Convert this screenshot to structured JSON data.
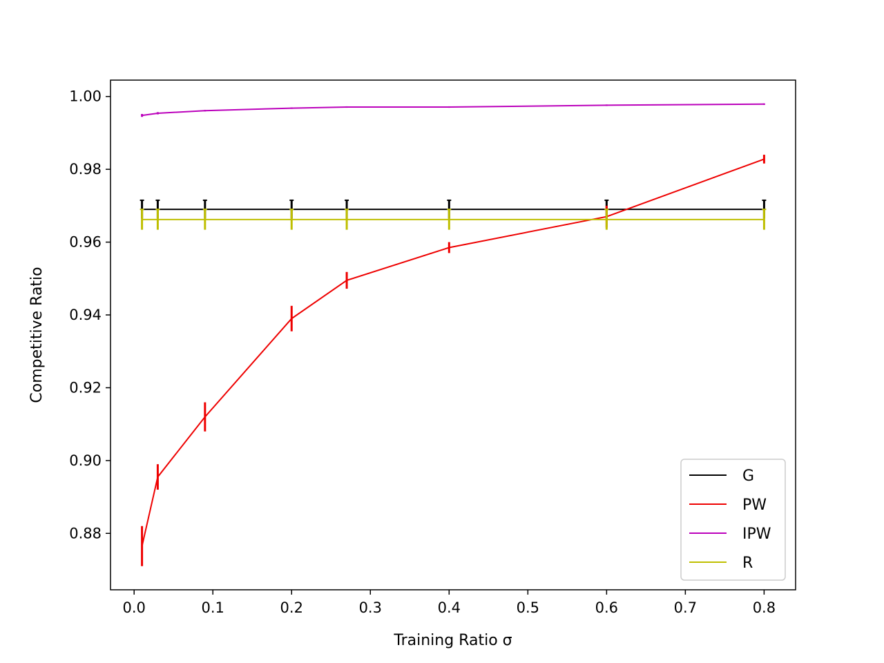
{
  "chart_data": {
    "type": "line",
    "title": "",
    "xlabel": "Training Ratio σ",
    "ylabel": "Competitive Ratio",
    "xlim": [
      -0.03,
      0.84
    ],
    "ylim": [
      0.8645,
      1.0045
    ],
    "xticks": [
      0.0,
      0.1,
      0.2,
      0.3,
      0.4,
      0.5,
      0.6,
      0.7,
      0.8
    ],
    "xtick_labels": [
      "0.0",
      "0.1",
      "0.2",
      "0.3",
      "0.4",
      "0.5",
      "0.6",
      "0.7",
      "0.8"
    ],
    "yticks": [
      0.88,
      0.9,
      0.92,
      0.94,
      0.96,
      0.98,
      1.0
    ],
    "ytick_labels": [
      "0.88",
      "0.90",
      "0.92",
      "0.94",
      "0.96",
      "0.98",
      "1.00"
    ],
    "grid": false,
    "legend": "lower-right",
    "x": [
      0.01,
      0.03,
      0.09,
      0.2,
      0.27,
      0.4,
      0.6,
      0.8
    ],
    "series": [
      {
        "name": "G",
        "color": "#000000",
        "values": [
          0.969,
          0.969,
          0.969,
          0.969,
          0.969,
          0.969,
          0.969,
          0.969
        ],
        "errors": [
          0.0025,
          0.0025,
          0.0025,
          0.0025,
          0.0025,
          0.0025,
          0.0025,
          0.0025
        ]
      },
      {
        "name": "PW",
        "color": "#ee0000",
        "values": [
          0.8765,
          0.8955,
          0.912,
          0.939,
          0.9495,
          0.9585,
          0.967,
          0.9828
        ],
        "errors": [
          0.0055,
          0.0035,
          0.004,
          0.0035,
          0.0023,
          0.0015,
          0.003,
          0.0012
        ]
      },
      {
        "name": "IPW",
        "color": "#bb00bb",
        "values": [
          0.9948,
          0.9954,
          0.9961,
          0.9968,
          0.9971,
          0.9971,
          0.9976,
          0.9979
        ],
        "errors": [
          0.0004,
          0.0003,
          0.0002,
          0.0002,
          0.0002,
          0.0002,
          0.0002,
          0.0002
        ]
      },
      {
        "name": "R",
        "color": "#bfbf00",
        "values": [
          0.9662,
          0.9662,
          0.9662,
          0.9662,
          0.9662,
          0.9662,
          0.9662,
          0.9662
        ],
        "errors": [
          0.0028,
          0.0028,
          0.0028,
          0.0028,
          0.0028,
          0.0028,
          0.0028,
          0.0028
        ]
      }
    ]
  }
}
